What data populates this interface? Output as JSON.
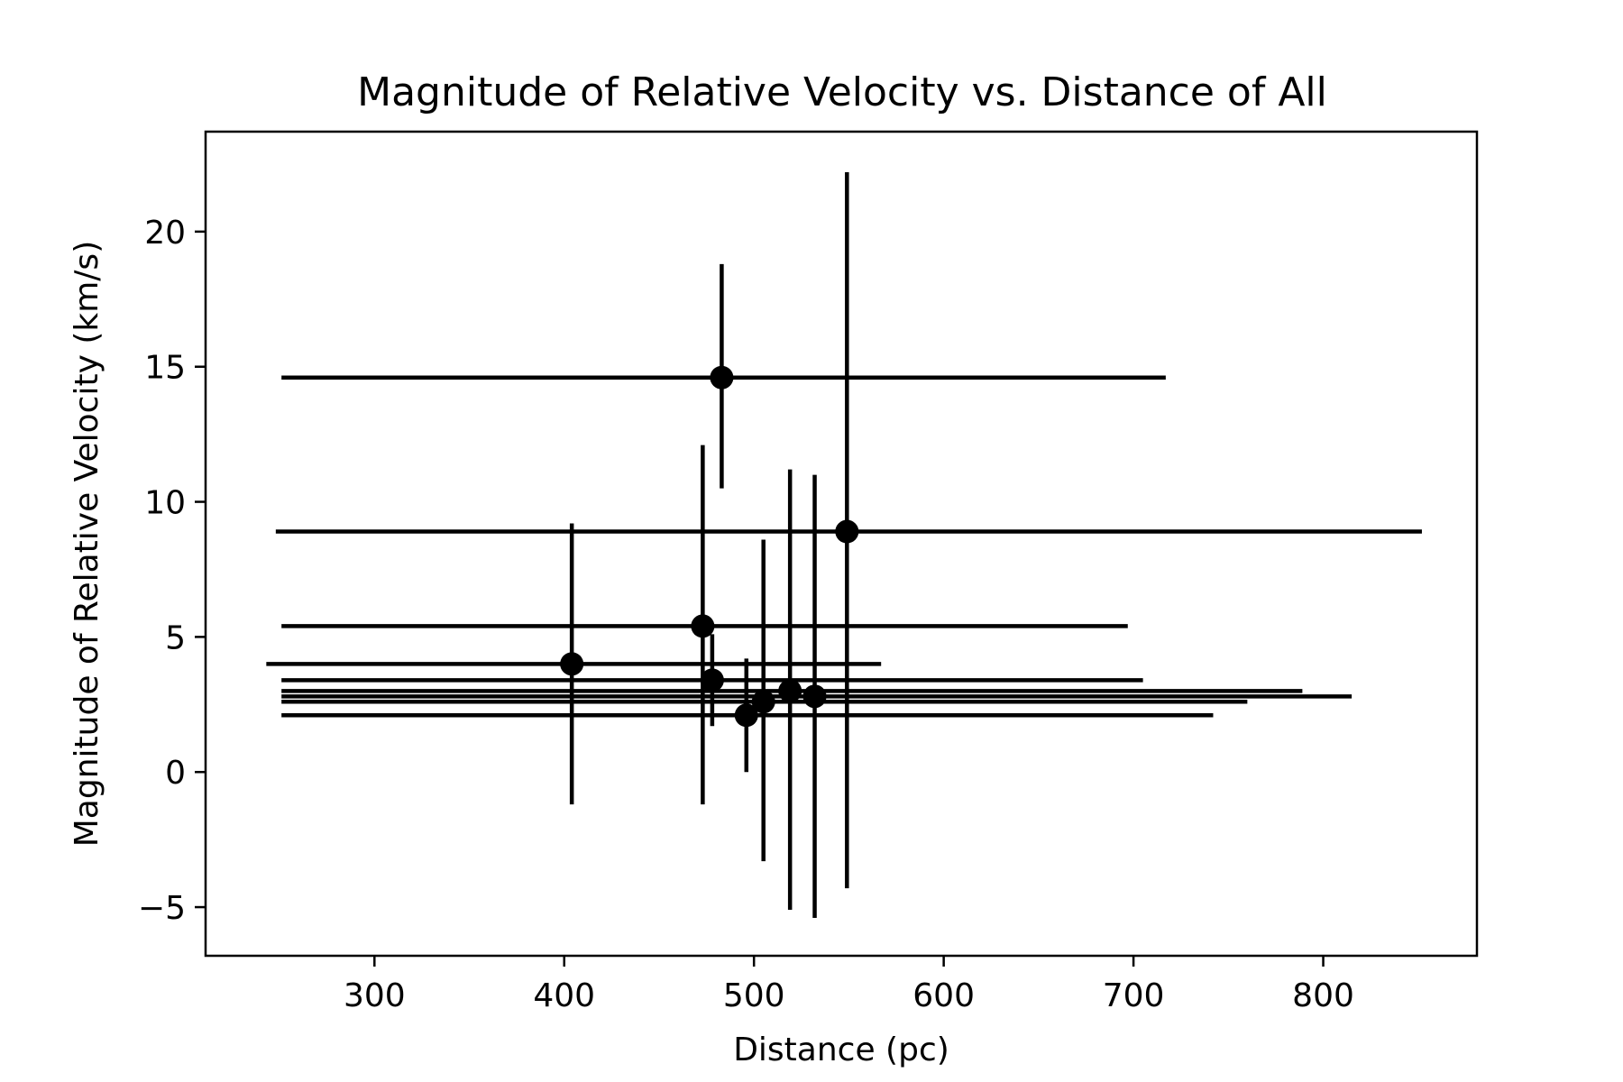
{
  "chart_data": {
    "type": "scatter",
    "title": "Magnitude of Relative Velocity vs. Distance of All",
    "xlabel": "Distance (pc)",
    "ylabel": "Magnitude of Relative Velocity (km/s)",
    "xlim": [
      211,
      881
    ],
    "ylim": [
      -6.8,
      23.7
    ],
    "xticks": [
      300,
      400,
      500,
      600,
      700,
      800
    ],
    "yticks": [
      -5,
      0,
      5,
      10,
      15,
      20
    ],
    "xtick_labels": [
      "300",
      "400",
      "500",
      "600",
      "700",
      "800"
    ],
    "ytick_labels": [
      "−5",
      "0",
      "5",
      "10",
      "15",
      "20"
    ],
    "grid": false,
    "legend": false,
    "marker_color": "#000000",
    "points": [
      {
        "x": 404,
        "y": 4.0,
        "xerr_low": 243,
        "xerr_high": 567,
        "yerr_low": -1.2,
        "yerr_high": 9.2
      },
      {
        "x": 473,
        "y": 5.4,
        "xerr_low": 251,
        "xerr_high": 697,
        "yerr_low": -1.2,
        "yerr_high": 12.1
      },
      {
        "x": 478,
        "y": 3.4,
        "xerr_low": 251,
        "xerr_high": 705,
        "yerr_low": 1.7,
        "yerr_high": 5.1
      },
      {
        "x": 483,
        "y": 14.6,
        "xerr_low": 251,
        "xerr_high": 717,
        "yerr_low": 10.5,
        "yerr_high": 18.8
      },
      {
        "x": 496,
        "y": 2.1,
        "xerr_low": 251,
        "xerr_high": 742,
        "yerr_low": 0.0,
        "yerr_high": 4.2
      },
      {
        "x": 505,
        "y": 2.6,
        "xerr_low": 251,
        "xerr_high": 760,
        "yerr_low": -3.3,
        "yerr_high": 8.6
      },
      {
        "x": 519,
        "y": 3.0,
        "xerr_low": 251,
        "xerr_high": 789,
        "yerr_low": -5.1,
        "yerr_high": 11.2
      },
      {
        "x": 532,
        "y": 2.8,
        "xerr_low": 251,
        "xerr_high": 815,
        "yerr_low": -5.4,
        "yerr_high": 11.0
      },
      {
        "x": 549,
        "y": 8.9,
        "xerr_low": 248,
        "xerr_high": 852,
        "yerr_low": -4.3,
        "yerr_high": 22.2
      }
    ]
  }
}
